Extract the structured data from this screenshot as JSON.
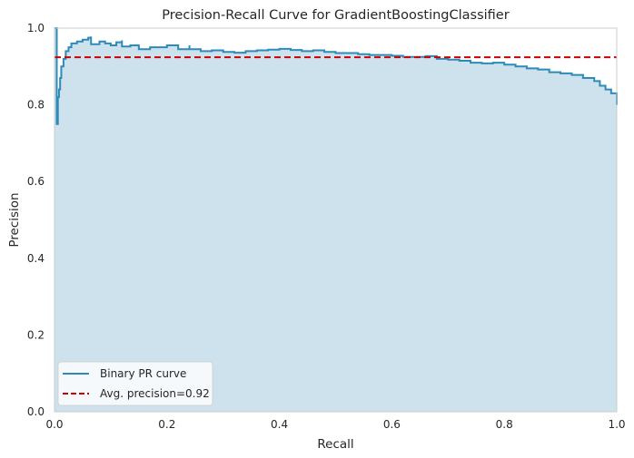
{
  "chart_data": {
    "type": "line",
    "title": "Precision-Recall Curve for GradientBoostingClassifier",
    "xlabel": "Recall",
    "ylabel": "Precision",
    "xlim": [
      0.0,
      1.0
    ],
    "ylim": [
      0.0,
      1.0
    ],
    "xticks": [
      "0.0",
      "0.2",
      "0.4",
      "0.6",
      "0.8",
      "1.0"
    ],
    "yticks": [
      "0.0",
      "0.2",
      "0.4",
      "0.6",
      "0.8",
      "1.0"
    ],
    "grid": false,
    "legend_position": "lower-left",
    "series": [
      {
        "name": "Binary PR curve",
        "color": "#2e8ab8",
        "fill_color": "#cde2ec",
        "x": [
          0.0,
          0.002,
          0.004,
          0.006,
          0.006,
          0.008,
          0.01,
          0.012,
          0.016,
          0.02,
          0.025,
          0.03,
          0.04,
          0.05,
          0.06,
          0.065,
          0.065,
          0.08,
          0.09,
          0.1,
          0.11,
          0.12,
          0.12,
          0.135,
          0.15,
          0.17,
          0.2,
          0.22,
          0.24,
          0.24,
          0.26,
          0.28,
          0.3,
          0.32,
          0.34,
          0.36,
          0.38,
          0.4,
          0.42,
          0.44,
          0.46,
          0.48,
          0.5,
          0.52,
          0.54,
          0.56,
          0.58,
          0.6,
          0.62,
          0.64,
          0.66,
          0.68,
          0.7,
          0.72,
          0.74,
          0.76,
          0.78,
          0.8,
          0.82,
          0.84,
          0.86,
          0.88,
          0.9,
          0.92,
          0.94,
          0.96,
          0.97,
          0.98,
          0.99,
          1.0
        ],
        "y": [
          1.0,
          1.0,
          0.75,
          0.78,
          0.82,
          0.84,
          0.87,
          0.9,
          0.92,
          0.94,
          0.95,
          0.96,
          0.965,
          0.97,
          0.975,
          0.978,
          0.958,
          0.965,
          0.96,
          0.955,
          0.963,
          0.968,
          0.952,
          0.955,
          0.945,
          0.95,
          0.955,
          0.945,
          0.955,
          0.945,
          0.94,
          0.942,
          0.938,
          0.936,
          0.94,
          0.942,
          0.944,
          0.946,
          0.943,
          0.94,
          0.942,
          0.938,
          0.935,
          0.935,
          0.932,
          0.93,
          0.93,
          0.928,
          0.925,
          0.925,
          0.927,
          0.92,
          0.918,
          0.915,
          0.91,
          0.908,
          0.91,
          0.905,
          0.9,
          0.895,
          0.892,
          0.885,
          0.882,
          0.878,
          0.87,
          0.862,
          0.85,
          0.84,
          0.83,
          0.8
        ]
      },
      {
        "name": "Avg. precision=0.92",
        "color": "#cc0000",
        "style": "dashed",
        "y": 0.924
      }
    ]
  }
}
